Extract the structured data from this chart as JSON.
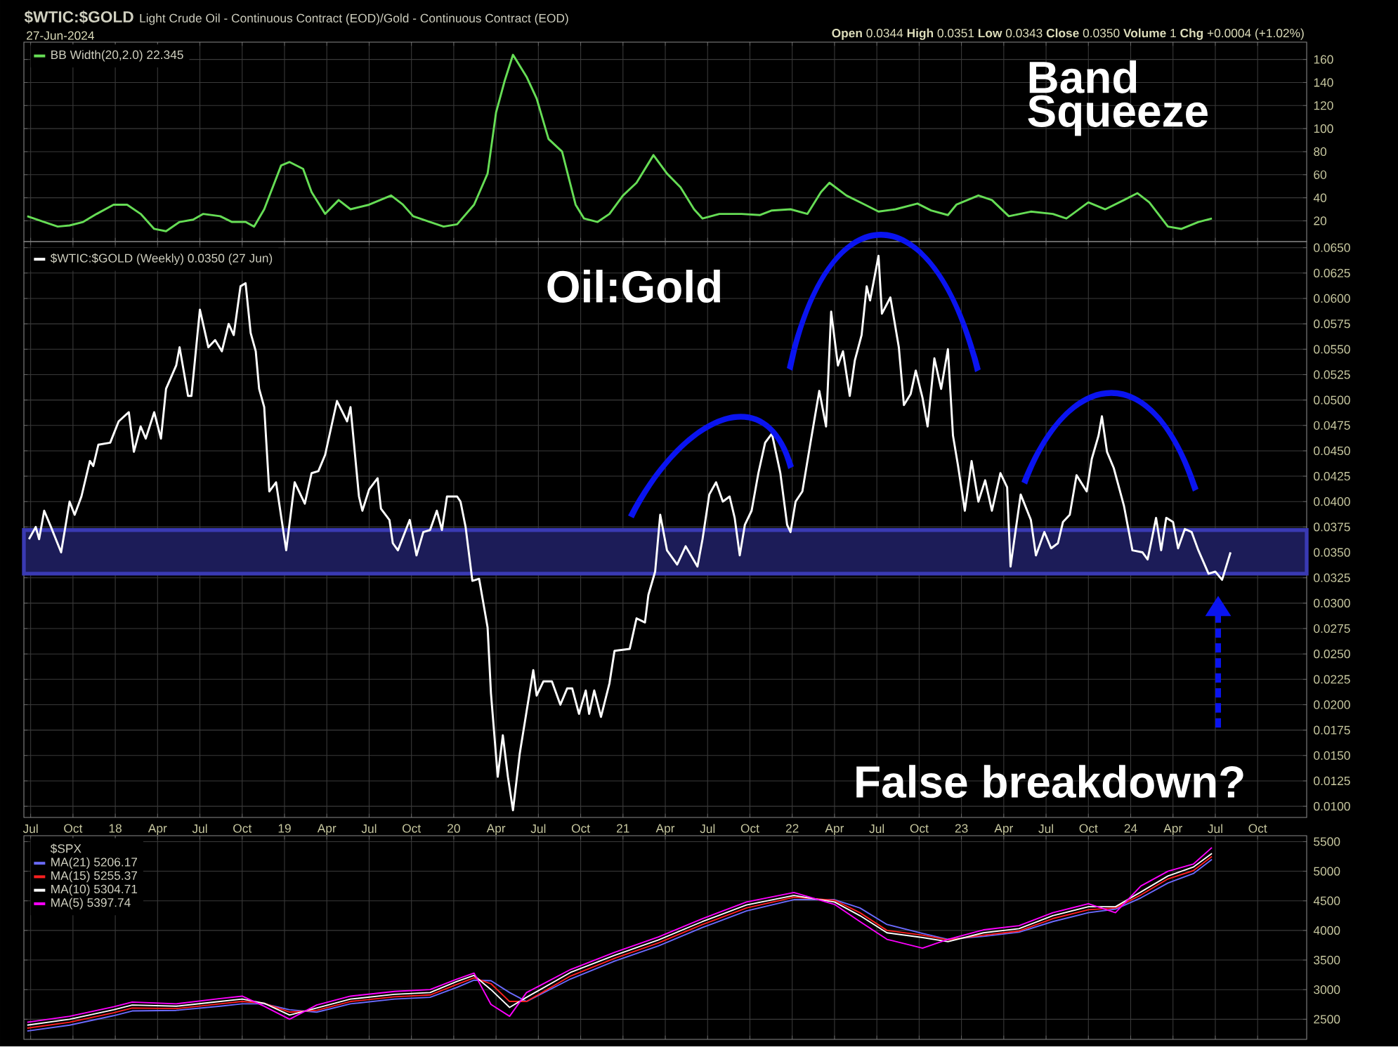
{
  "chart_data": [
    {
      "type": "line",
      "title": "$WTIC:$GOLD",
      "subtitle": "Light Crude Oil - Continuous Contract (EOD)/Gold - Continuous Contract (EOD)",
      "annotations": [
        "27-Jun-2024",
        "**Open** 0.0344 **High** 0.0351 **Low** 0.0343 **Close** 0.0350 **Volume** 1 **Chg** +0.0004 (+1.02%)",
        "Band Squeeze"
      ],
      "x": [
        2017.48,
        2017.58,
        2017.66,
        2017.73,
        2017.81,
        2017.89,
        2017.99,
        2018.07,
        2018.15,
        2018.23,
        2018.3,
        2018.38,
        2018.46,
        2018.52,
        2018.62,
        2018.69,
        2018.77,
        2018.82,
        2018.88,
        2018.98,
        2019.03,
        2019.11,
        2019.16,
        2019.24,
        2019.32,
        2019.39,
        2019.5,
        2019.63,
        2019.7,
        2019.76,
        2019.86,
        2019.94,
        2020.02,
        2020.12,
        2020.2,
        2020.25,
        2020.3,
        2020.35,
        2020.43,
        2020.49,
        2020.56,
        2020.64,
        2020.72,
        2020.77,
        2020.85,
        2020.92,
        2021.0,
        2021.08,
        2021.18,
        2021.26,
        2021.34,
        2021.42,
        2021.47,
        2021.57,
        2021.7,
        2021.81,
        2021.88,
        2021.99,
        2022.09,
        2022.17,
        2022.22,
        2022.32,
        2022.43,
        2022.51,
        2022.61,
        2022.74,
        2022.82,
        2022.92,
        2022.97,
        2023.1,
        2023.18,
        2023.28,
        2023.41,
        2023.54,
        2023.62,
        2023.75,
        2023.85,
        2023.96,
        2024.04,
        2024.11,
        2024.22,
        2024.3,
        2024.4,
        2024.48
      ],
      "xticks": [
        {
          "value": 2017.5,
          "label": null
        },
        {
          "value": 2017.75,
          "label": null
        },
        {
          "value": 2018,
          "label": null
        },
        {
          "value": 2018.25,
          "label": null
        },
        {
          "value": 2018.5,
          "label": null
        },
        {
          "value": 2018.75,
          "label": null
        },
        {
          "value": 2019,
          "label": null
        },
        {
          "value": 2019.25,
          "label": null
        },
        {
          "value": 2019.5,
          "label": null
        },
        {
          "value": 2019.75,
          "label": null
        },
        {
          "value": 2020,
          "label": null
        },
        {
          "value": 2020.25,
          "label": null
        },
        {
          "value": 2020.5,
          "label": null
        },
        {
          "value": 2020.75,
          "label": null
        },
        {
          "value": 2021,
          "label": null
        },
        {
          "value": 2021.25,
          "label": null
        },
        {
          "value": 2021.5,
          "label": null
        },
        {
          "value": 2021.75,
          "label": null
        },
        {
          "value": 2022,
          "label": null
        },
        {
          "value": 2022.25,
          "label": null
        },
        {
          "value": 2022.5,
          "label": null
        },
        {
          "value": 2022.75,
          "label": null
        },
        {
          "value": 2023,
          "label": null
        },
        {
          "value": 2023.25,
          "label": null
        },
        {
          "value": 2023.5,
          "label": null
        },
        {
          "value": 2023.75,
          "label": null
        },
        {
          "value": 2024,
          "label": null
        },
        {
          "value": 2024.25,
          "label": null
        },
        {
          "value": 2024.5,
          "label": null
        },
        {
          "value": 2024.75,
          "label": null
        }
      ],
      "series": [
        {
          "name": "BB Width(20,2.0) 22.345",
          "color": "#66dd55",
          "values": [
            24,
            19,
            15,
            16,
            19,
            26,
            34,
            34,
            26,
            13,
            11,
            19,
            21,
            26,
            24,
            19,
            19,
            15,
            30,
            68,
            71,
            65,
            45,
            26,
            38,
            30,
            34,
            42,
            34,
            24,
            19,
            15,
            17,
            34,
            61,
            114,
            141,
            164,
            145,
            126,
            91,
            80,
            34,
            22,
            19,
            26,
            42,
            53,
            77,
            61,
            49,
            30,
            22,
            26,
            26,
            25,
            29,
            30,
            26,
            45,
            53,
            42,
            34,
            28,
            30,
            35,
            29,
            25,
            34,
            42,
            38,
            24,
            28,
            26,
            22,
            36,
            30,
            38,
            44,
            36,
            15,
            13,
            19,
            22
          ]
        }
      ],
      "xlim": [
        2017.46,
        2025.04
      ],
      "ylim": [
        2,
        175
      ],
      "yticks": [
        20,
        40,
        60,
        80,
        100,
        120,
        140,
        160
      ],
      "tick_labels": "y",
      "grid": true,
      "legend": "top left"
    },
    {
      "type": "line",
      "annotations": [
        "Oil:Gold",
        "False breakdown?"
      ],
      "series": [
        {
          "name": "$WTIC:$GOLD (Weekly) 0.0350 (27 Jun)",
          "color": "#ffffff",
          "x": [
            2017.49,
            2017.53,
            2017.55,
            2017.58,
            2017.62,
            2017.68,
            2017.73,
            2017.76,
            2017.8,
            2017.85,
            2017.87,
            2017.9,
            2017.97,
            2018.02,
            2018.08,
            2018.11,
            2018.15,
            2018.18,
            2018.23,
            2018.27,
            2018.3,
            2018.36,
            2018.38,
            2018.43,
            2018.45,
            2018.5,
            2018.55,
            2018.59,
            2018.63,
            2018.67,
            2018.7,
            2018.74,
            2018.77,
            2018.8,
            2018.83,
            2018.85,
            2018.88,
            2018.91,
            2018.95,
            2019.01,
            2019.06,
            2019.12,
            2019.16,
            2019.2,
            2019.24,
            2019.31,
            2019.37,
            2019.39,
            2019.44,
            2019.46,
            2019.5,
            2019.55,
            2019.57,
            2019.62,
            2019.64,
            2019.67,
            2019.74,
            2019.78,
            2019.82,
            2019.86,
            2019.9,
            2019.93,
            2019.96,
            2020.02,
            2020.04,
            2020.07,
            2020.11,
            2020.15,
            2020.2,
            2020.22,
            2020.26,
            2020.29,
            2020.32,
            2020.35,
            2020.39,
            2020.43,
            2020.47,
            2020.49,
            2020.53,
            2020.58,
            2020.63,
            2020.67,
            2020.7,
            2020.74,
            2020.78,
            2020.8,
            2020.83,
            2020.87,
            2020.92,
            2020.95,
            2021.04,
            2021.08,
            2021.13,
            2021.15,
            2021.19,
            2021.22,
            2021.26,
            2021.32,
            2021.37,
            2021.44,
            2021.47,
            2021.51,
            2021.55,
            2021.59,
            2021.63,
            2021.66,
            2021.69,
            2021.72,
            2021.76,
            2021.8,
            2021.84,
            2021.88,
            2021.93,
            2021.97,
            2021.99,
            2022.02,
            2022.06,
            2022.11,
            2022.16,
            2022.2,
            2022.23,
            2022.27,
            2022.3,
            2022.34,
            2022.37,
            2022.41,
            2022.44,
            2022.46,
            2022.51,
            2022.53,
            2022.58,
            2022.63,
            2022.66,
            2022.7,
            2022.73,
            2022.77,
            2022.8,
            2022.84,
            2022.88,
            2022.92,
            2022.95,
            2022.98,
            2023.02,
            2023.06,
            2023.1,
            2023.14,
            2023.18,
            2023.23,
            2023.27,
            2023.29,
            2023.35,
            2023.41,
            2023.44,
            2023.49,
            2023.53,
            2023.57,
            2023.6,
            2023.64,
            2023.68,
            2023.74,
            2023.77,
            2023.81,
            2023.83,
            2023.86,
            2023.9,
            2023.96,
            2024.01,
            2024.07,
            2024.1,
            2024.12,
            2024.15,
            2024.18,
            2024.21,
            2024.25,
            2024.28,
            2024.32,
            2024.36,
            2024.4,
            2024.46,
            2024.5,
            2024.54,
            2024.59
          ],
          "values": [
            0.0363,
            0.0375,
            0.0363,
            0.0391,
            0.0375,
            0.035,
            0.04,
            0.0387,
            0.0405,
            0.044,
            0.0435,
            0.0456,
            0.0458,
            0.0479,
            0.0488,
            0.0449,
            0.0474,
            0.0462,
            0.0488,
            0.0462,
            0.0511,
            0.0534,
            0.0552,
            0.0504,
            0.0504,
            0.0589,
            0.0552,
            0.0559,
            0.0548,
            0.0575,
            0.0564,
            0.0612,
            0.0615,
            0.0566,
            0.0548,
            0.0511,
            0.0493,
            0.041,
            0.0419,
            0.0352,
            0.0419,
            0.0398,
            0.0428,
            0.043,
            0.0446,
            0.0499,
            0.0479,
            0.0493,
            0.0405,
            0.0391,
            0.0412,
            0.0423,
            0.0393,
            0.0382,
            0.0359,
            0.0352,
            0.0382,
            0.0347,
            0.037,
            0.0372,
            0.0391,
            0.0372,
            0.0405,
            0.0405,
            0.04,
            0.0375,
            0.0322,
            0.0324,
            0.0276,
            0.0211,
            0.0129,
            0.017,
            0.0129,
            0.0096,
            0.0152,
            0.0193,
            0.0234,
            0.0209,
            0.0223,
            0.0223,
            0.02,
            0.0216,
            0.0216,
            0.0191,
            0.0214,
            0.0191,
            0.0214,
            0.0188,
            0.0221,
            0.0253,
            0.0255,
            0.0285,
            0.0281,
            0.0308,
            0.0331,
            0.0387,
            0.0352,
            0.0338,
            0.0356,
            0.0336,
            0.0363,
            0.0407,
            0.0419,
            0.04,
            0.0405,
            0.0384,
            0.0347,
            0.0377,
            0.0391,
            0.0428,
            0.0458,
            0.0467,
            0.0428,
            0.0377,
            0.037,
            0.04,
            0.041,
            0.046,
            0.0509,
            0.0474,
            0.0587,
            0.0534,
            0.0548,
            0.0504,
            0.0539,
            0.0564,
            0.0612,
            0.0598,
            0.0642,
            0.0585,
            0.0601,
            0.0552,
            0.0495,
            0.0506,
            0.0529,
            0.0502,
            0.0474,
            0.0541,
            0.0511,
            0.055,
            0.0465,
            0.0435,
            0.0391,
            0.044,
            0.04,
            0.0421,
            0.0391,
            0.0428,
            0.0414,
            0.0336,
            0.0407,
            0.0382,
            0.0347,
            0.037,
            0.0354,
            0.0359,
            0.038,
            0.0387,
            0.0426,
            0.041,
            0.0442,
            0.0465,
            0.0484,
            0.0449,
            0.0433,
            0.0396,
            0.0352,
            0.035,
            0.0343,
            0.0359,
            0.0384,
            0.0352,
            0.0384,
            0.038,
            0.0354,
            0.0373,
            0.037,
            0.0352,
            0.0329,
            0.0331,
            0.0323,
            0.035
          ]
        }
      ],
      "bands": [
        {
          "axis": "y",
          "from": 0.0329,
          "to": 0.0372,
          "color": "#1c1c58"
        }
      ],
      "xlim": [
        2017.46,
        2025.04
      ],
      "ylim": [
        0.0089,
        0.0656
      ],
      "xticks": [
        {
          "value": 2017.5,
          "label": "Jul"
        },
        {
          "value": 2017.75,
          "label": "Oct"
        },
        {
          "value": 2018,
          "label": "18"
        },
        {
          "value": 2018.25,
          "label": "Apr"
        },
        {
          "value": 2018.5,
          "label": "Jul"
        },
        {
          "value": 2018.75,
          "label": "Oct"
        },
        {
          "value": 2019,
          "label": "19"
        },
        {
          "value": 2019.25,
          "label": "Apr"
        },
        {
          "value": 2019.5,
          "label": "Jul"
        },
        {
          "value": 2019.75,
          "label": "Oct"
        },
        {
          "value": 2020,
          "label": "20"
        },
        {
          "value": 2020.25,
          "label": "Apr"
        },
        {
          "value": 2020.5,
          "label": "Jul"
        },
        {
          "value": 2020.75,
          "label": "Oct"
        },
        {
          "value": 2021,
          "label": "21"
        },
        {
          "value": 2021.25,
          "label": "Apr"
        },
        {
          "value": 2021.5,
          "label": "Jul"
        },
        {
          "value": 2021.75,
          "label": "Oct"
        },
        {
          "value": 2022,
          "label": "22"
        },
        {
          "value": 2022.25,
          "label": "Apr"
        },
        {
          "value": 2022.5,
          "label": "Jul"
        },
        {
          "value": 2022.75,
          "label": "Oct"
        },
        {
          "value": 2023,
          "label": "23"
        },
        {
          "value": 2023.25,
          "label": "Apr"
        },
        {
          "value": 2023.5,
          "label": "Jul"
        },
        {
          "value": 2023.75,
          "label": "Oct"
        },
        {
          "value": 2024,
          "label": "24"
        },
        {
          "value": 2024.25,
          "label": "Apr"
        },
        {
          "value": 2024.5,
          "label": "Jul"
        },
        {
          "value": 2024.75,
          "label": "Oct"
        }
      ],
      "yticks": [
        {
          "value": 0.01,
          "label": "0.0100"
        },
        {
          "value": 0.0125,
          "label": "0.0125"
        },
        {
          "value": 0.015,
          "label": "0.0150"
        },
        {
          "value": 0.0175,
          "label": "0.0175"
        },
        {
          "value": 0.02,
          "label": "0.0200"
        },
        {
          "value": 0.0225,
          "label": "0.0225"
        },
        {
          "value": 0.025,
          "label": "0.0250"
        },
        {
          "value": 0.0275,
          "label": "0.0275"
        },
        {
          "value": 0.03,
          "label": "0.0300"
        },
        {
          "value": 0.0325,
          "label": "0.0325"
        },
        {
          "value": 0.035,
          "label": "0.0350"
        },
        {
          "value": 0.0375,
          "label": "0.0375"
        },
        {
          "value": 0.04,
          "label": "0.0400"
        },
        {
          "value": 0.0425,
          "label": "0.0425"
        },
        {
          "value": 0.045,
          "label": "0.0450"
        },
        {
          "value": 0.0475,
          "label": "0.0475"
        },
        {
          "value": 0.05,
          "label": "0.0500"
        },
        {
          "value": 0.0525,
          "label": "0.0525"
        },
        {
          "value": 0.055,
          "label": "0.0550"
        },
        {
          "value": 0.0575,
          "label": "0.0575"
        },
        {
          "value": 0.06,
          "label": "0.0600"
        },
        {
          "value": 0.0625,
          "label": "0.0625"
        },
        {
          "value": 0.065,
          "label": "0.0650"
        }
      ],
      "grid": true,
      "legend": "top left"
    },
    {
      "type": "line",
      "legend_title": "$SPX",
      "x": [
        2017.48,
        2017.73,
        2017.99,
        2018.1,
        2018.36,
        2018.62,
        2018.75,
        2018.88,
        2019.03,
        2019.19,
        2019.39,
        2019.65,
        2019.86,
        2020.02,
        2020.12,
        2020.22,
        2020.33,
        2020.43,
        2020.69,
        2020.95,
        2021.21,
        2021.47,
        2021.73,
        2022.01,
        2022.25,
        2022.4,
        2022.56,
        2022.77,
        2022.92,
        2023.13,
        2023.34,
        2023.54,
        2023.75,
        2023.91,
        2024.06,
        2024.22,
        2024.37,
        2024.48
      ],
      "series": [
        {
          "name": "MA(21) 5206.17",
          "color": "#6b6bff",
          "values": [
            2300,
            2400,
            2560,
            2640,
            2650,
            2720,
            2760,
            2760,
            2660,
            2620,
            2760,
            2840,
            2870,
            3040,
            3160,
            3150,
            2950,
            2800,
            3180,
            3480,
            3740,
            4050,
            4330,
            4520,
            4520,
            4380,
            4100,
            3950,
            3850,
            3900,
            3970,
            4150,
            4300,
            4360,
            4550,
            4800,
            4960,
            5200
          ]
        },
        {
          "name": "MA(15) 5255.37",
          "color": "#ff2020",
          "values": [
            2350,
            2450,
            2610,
            2690,
            2680,
            2760,
            2800,
            2770,
            2620,
            2650,
            2800,
            2880,
            2910,
            3090,
            3200,
            3100,
            2800,
            2800,
            3230,
            3530,
            3790,
            4100,
            4380,
            4560,
            4510,
            4300,
            4000,
            3920,
            3840,
            3920,
            3990,
            4200,
            4350,
            4380,
            4600,
            4870,
            5010,
            5250
          ]
        },
        {
          "name": "MA(10) 5304.71",
          "color": "#ffffff",
          "values": [
            2400,
            2500,
            2660,
            2740,
            2720,
            2800,
            2840,
            2770,
            2570,
            2690,
            2840,
            2920,
            2950,
            3140,
            3240,
            3000,
            2700,
            2870,
            3290,
            3580,
            3840,
            4150,
            4430,
            4590,
            4480,
            4250,
            3960,
            3880,
            3810,
            3960,
            4030,
            4250,
            4400,
            4400,
            4650,
            4920,
            5070,
            5300
          ]
        },
        {
          "name": "MA(5) 5397.74",
          "color": "#ff00ff",
          "values": [
            2450,
            2550,
            2710,
            2790,
            2760,
            2850,
            2890,
            2720,
            2500,
            2740,
            2890,
            2970,
            3000,
            3180,
            3280,
            2750,
            2550,
            2950,
            3340,
            3630,
            3890,
            4200,
            4480,
            4640,
            4440,
            4150,
            3850,
            3700,
            3850,
            4010,
            4080,
            4300,
            4450,
            4300,
            4750,
            5000,
            5120,
            5400
          ]
        }
      ],
      "xlim": [
        2017.46,
        2025.04
      ],
      "ylim": [
        2160,
        5600
      ],
      "xticks": [
        {
          "value": 2017.5,
          "label": null
        },
        {
          "value": 2017.75,
          "label": null
        },
        {
          "value": 2018,
          "label": null
        },
        {
          "value": 2018.25,
          "label": null
        },
        {
          "value": 2018.5,
          "label": null
        },
        {
          "value": 2018.75,
          "label": null
        },
        {
          "value": 2019,
          "label": null
        },
        {
          "value": 2019.25,
          "label": null
        },
        {
          "value": 2019.5,
          "label": null
        },
        {
          "value": 2019.75,
          "label": null
        },
        {
          "value": 2020,
          "label": null
        },
        {
          "value": 2020.25,
          "label": null
        },
        {
          "value": 2020.5,
          "label": null
        },
        {
          "value": 2020.75,
          "label": null
        },
        {
          "value": 2021,
          "label": null
        },
        {
          "value": 2021.25,
          "label": null
        },
        {
          "value": 2021.5,
          "label": null
        },
        {
          "value": 2021.75,
          "label": null
        },
        {
          "value": 2022,
          "label": null
        },
        {
          "value": 2022.25,
          "label": null
        },
        {
          "value": 2022.5,
          "label": null
        },
        {
          "value": 2022.75,
          "label": null
        },
        {
          "value": 2023,
          "label": null
        },
        {
          "value": 2023.25,
          "label": null
        },
        {
          "value": 2023.5,
          "label": null
        },
        {
          "value": 2023.75,
          "label": null
        },
        {
          "value": 2024,
          "label": null
        },
        {
          "value": 2024.25,
          "label": null
        },
        {
          "value": 2024.5,
          "label": null
        },
        {
          "value": 2024.75,
          "label": null
        }
      ],
      "yticks": [
        2500,
        3000,
        3500,
        4000,
        4500,
        5000,
        5500
      ],
      "tick_labels": "y",
      "grid": true,
      "legend": "top left"
    }
  ]
}
